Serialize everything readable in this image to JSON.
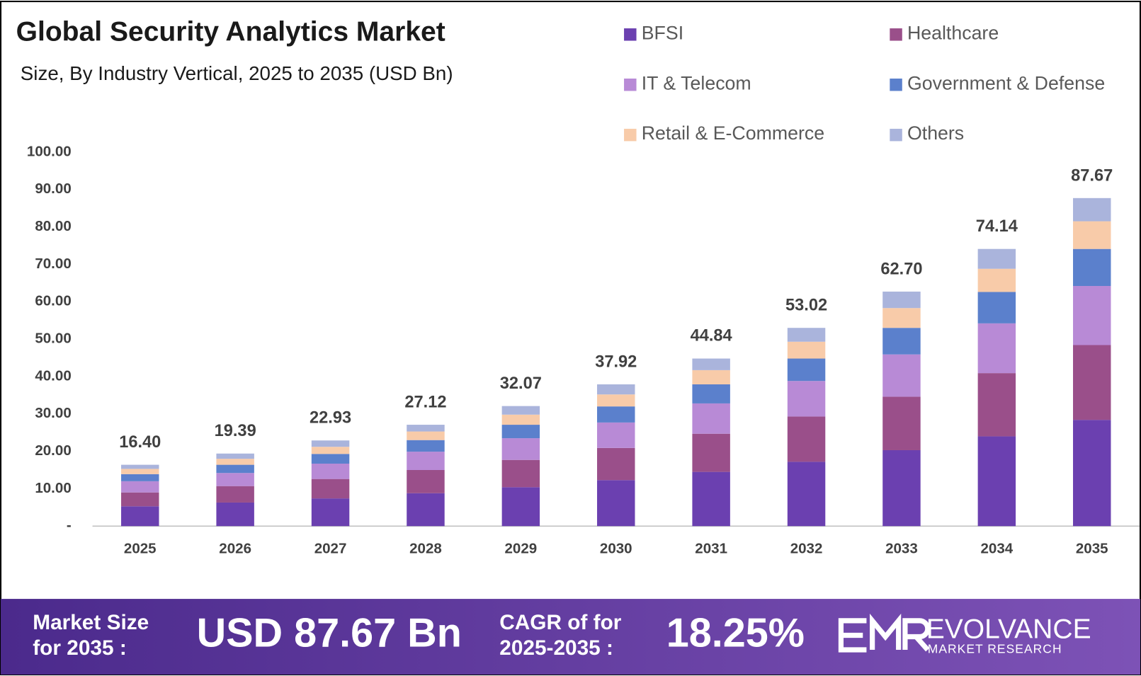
{
  "chart_data": {
    "type": "stacked_bar",
    "title": "Global Security Analytics Market",
    "subtitle": "Size, By Industry Vertical, 2025 to 2035 (USD Bn)",
    "categories": [
      "2025",
      "2026",
      "2027",
      "2028",
      "2029",
      "2030",
      "2031",
      "2032",
      "2033",
      "2034",
      "2035"
    ],
    "series": [
      {
        "name": "BFSI",
        "color": "#6b40b0",
        "values": [
          5.3,
          6.3,
          7.4,
          8.8,
          10.4,
          12.3,
          14.5,
          17.2,
          20.3,
          24.0,
          28.4
        ]
      },
      {
        "name": "Healthcare",
        "color": "#9a4f8a",
        "values": [
          3.7,
          4.4,
          5.2,
          6.2,
          7.3,
          8.6,
          10.2,
          12.1,
          14.3,
          16.9,
          20.0
        ]
      },
      {
        "name": "IT & Telecom",
        "color": "#b88ad6",
        "values": [
          3.0,
          3.5,
          4.1,
          4.9,
          5.8,
          6.8,
          8.1,
          9.5,
          11.3,
          13.3,
          15.8
        ]
      },
      {
        "name": "Government & Defense",
        "color": "#5b80cc",
        "values": [
          1.9,
          2.2,
          2.6,
          3.1,
          3.6,
          4.3,
          5.1,
          6.0,
          7.1,
          8.4,
          9.9
        ]
      },
      {
        "name": "Retail & E-Commerce",
        "color": "#f8cba9",
        "values": [
          1.4,
          1.6,
          1.9,
          2.3,
          2.7,
          3.2,
          3.8,
          4.5,
          5.3,
          6.2,
          7.4
        ]
      },
      {
        "name": "Others",
        "color": "#aab4dc",
        "values": [
          1.1,
          1.4,
          1.7,
          1.8,
          2.3,
          2.7,
          3.1,
          3.7,
          4.4,
          5.3,
          6.2
        ]
      }
    ],
    "totals": {
      "values": [
        16.4,
        19.39,
        22.93,
        27.12,
        32.07,
        37.92,
        44.84,
        53.02,
        62.7,
        74.14,
        87.67
      ],
      "value_labels": [
        "16.40",
        "19.39",
        "22.93",
        "27.12",
        "32.07",
        "37.92",
        "44.84",
        "53.02",
        "62.70",
        "74.14",
        "87.67"
      ]
    },
    "ylim": [
      0,
      100
    ],
    "yticks": [
      {
        "value": 0,
        "label": "-"
      },
      {
        "value": 10,
        "label": "10.00"
      },
      {
        "value": 20,
        "label": "20.00"
      },
      {
        "value": 30,
        "label": "30.00"
      },
      {
        "value": 40,
        "label": "40.00"
      },
      {
        "value": 50,
        "label": "50.00"
      },
      {
        "value": 60,
        "label": "60.00"
      },
      {
        "value": 70,
        "label": "70.00"
      },
      {
        "value": 80,
        "label": "80.00"
      },
      {
        "value": 90,
        "label": "90.00"
      },
      {
        "value": 100,
        "label": "100.00"
      }
    ],
    "grid": false
  },
  "footer": {
    "size_label": [
      "Market Size",
      "for 2035 :"
    ],
    "size_value": "USD 87.67 Bn",
    "cagr_label": [
      "CAGR of for",
      "2025-2035 :"
    ],
    "cagr_value": "18.25%",
    "brand": "EVOLVANCE",
    "brand_sub": "MARKET RESEARCH"
  }
}
